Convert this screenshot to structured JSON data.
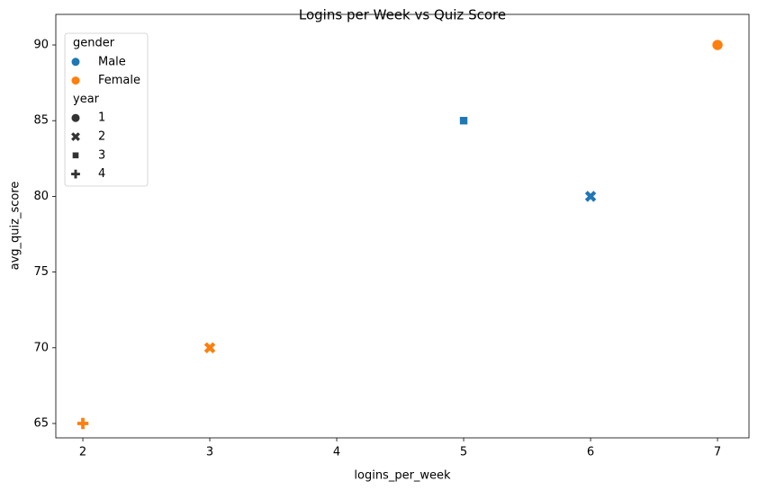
{
  "chart_data": {
    "type": "scatter",
    "title": "Logins per Week vs Quiz Score",
    "x_label": "logins_per_week",
    "y_label": "avg_quiz_score",
    "x": [
      2,
      3,
      5,
      6,
      7
    ],
    "y": [
      65,
      70,
      85,
      80,
      90
    ],
    "hue": [
      "Female",
      "Female",
      "Male",
      "Male",
      "Female"
    ],
    "style": [
      4,
      2,
      3,
      2,
      1
    ],
    "legend_hue_title": "gender",
    "hue_levels": [
      {
        "name": "Male",
        "color": "#1f77b4"
      },
      {
        "name": "Female",
        "color": "#ff7f0e"
      }
    ],
    "legend_style_title": "year",
    "style_levels": [
      {
        "value": 1,
        "marker": "circle"
      },
      {
        "value": 2,
        "marker": "x"
      },
      {
        "value": 3,
        "marker": "square"
      },
      {
        "value": 4,
        "marker": "plus"
      }
    ],
    "xlim": [
      1.787,
      7.248
    ],
    "ylim": [
      64.05,
      92.02
    ],
    "xticks": [
      2,
      3,
      4,
      5,
      6,
      7
    ],
    "yticks": [
      65,
      70,
      75,
      80,
      85,
      90
    ],
    "legend_position": "upper left",
    "grid": false
  }
}
